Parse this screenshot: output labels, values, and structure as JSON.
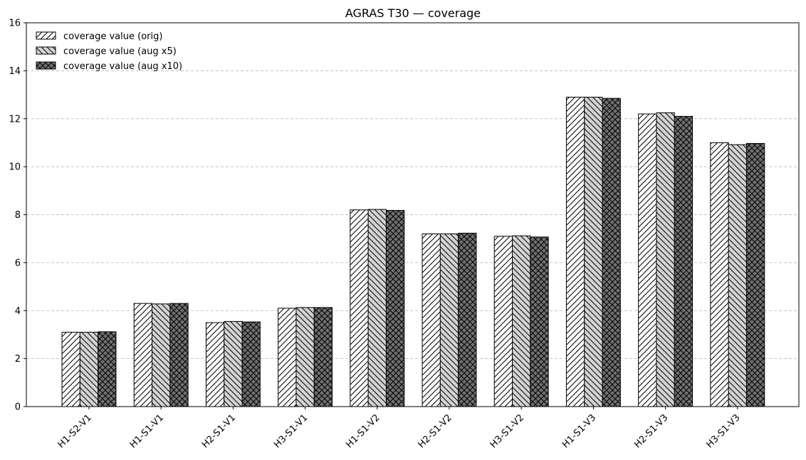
{
  "chart_data": {
    "type": "bar",
    "title": "AGRAS T30 — coverage",
    "xlabel": "",
    "ylabel": "",
    "ylim": [
      0,
      16
    ],
    "yticks": [
      0,
      2,
      4,
      6,
      8,
      10,
      12,
      14,
      16
    ],
    "grid": "y-dashed",
    "legend": "top-left",
    "categories": [
      "H1-S2-V1",
      "H1-S1-V1",
      "H2-S1-V1",
      "H3-S1-V1",
      "H1-S1-V2",
      "H2-S1-V2",
      "H3-S1-V2",
      "H1-S1-V3",
      "H2-S1-V3",
      "H3-S1-V3"
    ],
    "series": [
      {
        "name": "coverage value (orig)",
        "fill": "#ffffff",
        "hatch": "forward-diagonal",
        "values": [
          3.1,
          4.3,
          3.5,
          4.1,
          8.2,
          7.2,
          7.1,
          12.9,
          12.2,
          11.0
        ]
      },
      {
        "name": "coverage value (aug x5)",
        "fill": "#d3d3d3",
        "hatch": "back-diagonal",
        "values": [
          3.1,
          4.28,
          3.55,
          4.13,
          8.22,
          7.2,
          7.12,
          12.9,
          12.25,
          10.92
        ]
      },
      {
        "name": "coverage value (aug x10)",
        "fill": "#707070",
        "hatch": "crosshatch",
        "values": [
          3.12,
          4.3,
          3.53,
          4.13,
          8.18,
          7.23,
          7.07,
          12.85,
          12.1,
          10.97
        ]
      }
    ]
  }
}
